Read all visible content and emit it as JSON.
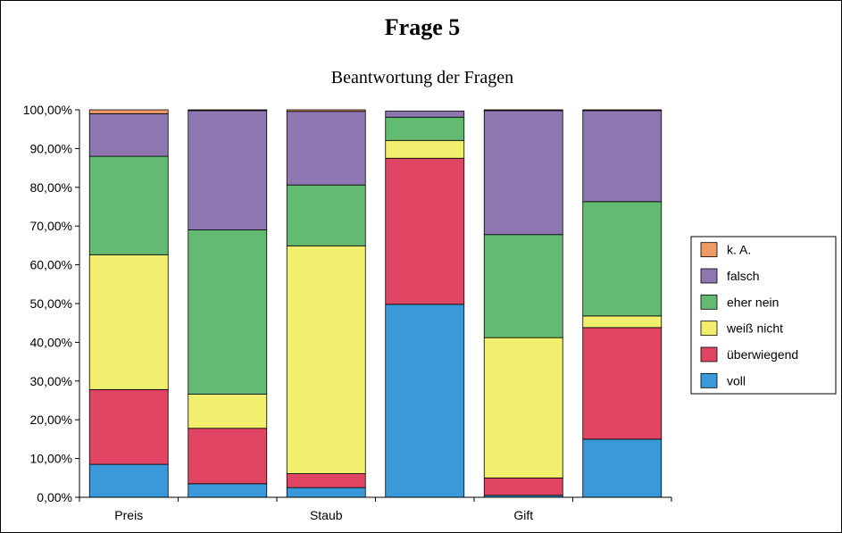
{
  "chart_data": {
    "type": "bar",
    "stacked": true,
    "title": "Frage 5",
    "subtitle": "Beantwortung der Fragen",
    "categories": [
      "Preis",
      "",
      "Staub",
      "",
      "Gift",
      ""
    ],
    "ylim": [
      0,
      100
    ],
    "yticks": [
      "0,00%",
      "10,00%",
      "20,00%",
      "30,00%",
      "40,00%",
      "50,00%",
      "60,00%",
      "70,00%",
      "80,00%",
      "90,00%",
      "100,00%"
    ],
    "grid": false,
    "legend_position": "right",
    "series": [
      {
        "name": "voll",
        "color": "#3a9ad9",
        "values": [
          8.5,
          3.5,
          2.5,
          49.8,
          0.5,
          15.0
        ]
      },
      {
        "name": "überwiegend",
        "color": "#e04563",
        "values": [
          19.3,
          14.3,
          3.6,
          37.7,
          4.5,
          28.8
        ]
      },
      {
        "name": "weiß nicht",
        "color": "#f2ef6e",
        "values": [
          34.8,
          8.8,
          58.8,
          4.6,
          36.2,
          3.0
        ]
      },
      {
        "name": "eher nein",
        "color": "#63bb72",
        "values": [
          25.4,
          42.4,
          15.7,
          6.0,
          26.6,
          29.5
        ]
      },
      {
        "name": "falsch",
        "color": "#8e76b0",
        "values": [
          11.0,
          30.8,
          19.0,
          1.6,
          32.0,
          23.5
        ]
      },
      {
        "name": "k. A.",
        "color": "#ef9a64",
        "values": [
          1.0,
          0.2,
          0.4,
          0.0,
          0.2,
          0.2
        ]
      }
    ]
  }
}
